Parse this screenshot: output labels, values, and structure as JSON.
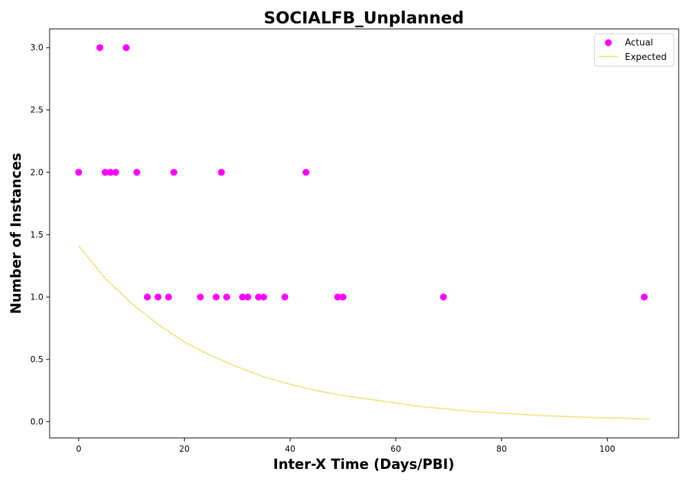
{
  "chart_data": {
    "type": "scatter",
    "title": "SOCIALFB_Unplanned",
    "xlabel": "Inter-X Time (Days/PBI)",
    "ylabel": "Number of Instances",
    "xlim": [
      -5.5,
      113.5
    ],
    "ylim": [
      -0.13,
      3.15
    ],
    "x_ticks": [
      0,
      20,
      40,
      60,
      80,
      100
    ],
    "y_ticks": [
      0.0,
      0.5,
      1.0,
      1.5,
      2.0,
      2.5,
      3.0
    ],
    "x_tick_labels": [
      "0",
      "20",
      "40",
      "60",
      "80",
      "100"
    ],
    "y_tick_labels": [
      "0.0",
      "0.5",
      "1.0",
      "1.5",
      "2.0",
      "2.5",
      "3.0"
    ],
    "grid": false,
    "legend_position": "top-right",
    "series": [
      {
        "name": "Actual",
        "kind": "scatter",
        "color": "#ff00ff",
        "points": [
          [
            0,
            2
          ],
          [
            4,
            3
          ],
          [
            5,
            2
          ],
          [
            6,
            2
          ],
          [
            7,
            2
          ],
          [
            9,
            3
          ],
          [
            11,
            2
          ],
          [
            13,
            1
          ],
          [
            15,
            1
          ],
          [
            17,
            1
          ],
          [
            18,
            2
          ],
          [
            23,
            1
          ],
          [
            26,
            1
          ],
          [
            27,
            2
          ],
          [
            28,
            1
          ],
          [
            31,
            1
          ],
          [
            32,
            1
          ],
          [
            34,
            1
          ],
          [
            35,
            1
          ],
          [
            39,
            1
          ],
          [
            43,
            2
          ],
          [
            49,
            1
          ],
          [
            50,
            1
          ],
          [
            69,
            1
          ],
          [
            107,
            1
          ]
        ]
      },
      {
        "name": "Expected",
        "kind": "line",
        "color": "#f0e68c",
        "points": [
          [
            0,
            1.41
          ],
          [
            5,
            1.15
          ],
          [
            10,
            0.95
          ],
          [
            15,
            0.78
          ],
          [
            20,
            0.64
          ],
          [
            25,
            0.53
          ],
          [
            30,
            0.44
          ],
          [
            35,
            0.36
          ],
          [
            40,
            0.3
          ],
          [
            45,
            0.25
          ],
          [
            50,
            0.21
          ],
          [
            55,
            0.18
          ],
          [
            60,
            0.15
          ],
          [
            65,
            0.12
          ],
          [
            70,
            0.1
          ],
          [
            75,
            0.08
          ],
          [
            80,
            0.07
          ],
          [
            85,
            0.055
          ],
          [
            90,
            0.045
          ],
          [
            95,
            0.037
          ],
          [
            100,
            0.03
          ],
          [
            105,
            0.025
          ],
          [
            108,
            0.02
          ]
        ]
      }
    ]
  }
}
